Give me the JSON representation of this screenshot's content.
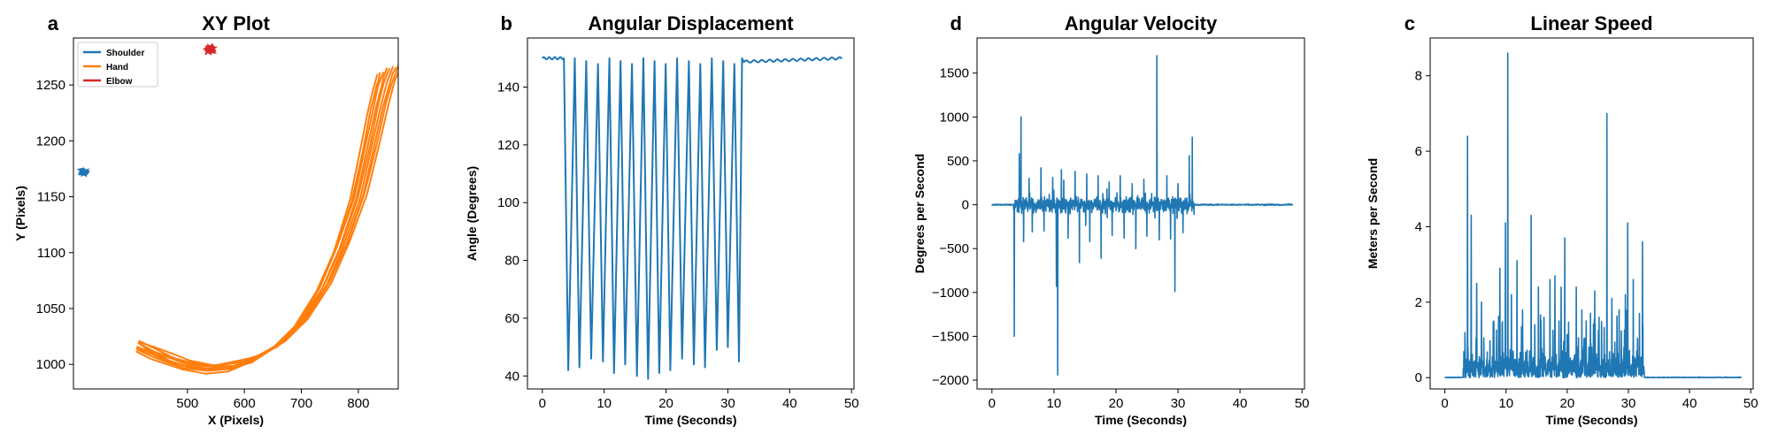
{
  "chart_data": [
    {
      "type": "line",
      "letter": "a",
      "title": "XY Plot",
      "xlabel": "X (Pixels)",
      "ylabel": "Y (Pixels)",
      "xlim": [
        300,
        870
      ],
      "ylim": [
        978,
        1292
      ],
      "xticks": [
        500,
        600,
        700,
        800
      ],
      "yticks": [
        1000,
        1050,
        1100,
        1150,
        1200,
        1250
      ],
      "legend_position": "top-left",
      "series": [
        {
          "name": "Shoulder",
          "color": "#1f77b4",
          "kind": "cluster",
          "center": [
            318,
            1172
          ],
          "spread": [
            12,
            4
          ]
        },
        {
          "name": "Hand",
          "color": "#ff7f0e",
          "kind": "arc",
          "x": [
            412,
            440,
            470,
            500,
            540,
            580,
            620,
            660,
            700,
            740,
            770,
            800,
            820,
            835,
            845,
            850,
            855
          ],
          "y": [
            1017,
            1010,
            1004,
            999,
            996,
            998,
            1005,
            1017,
            1038,
            1070,
            1105,
            1150,
            1195,
            1230,
            1250,
            1258,
            1265
          ]
        },
        {
          "name": "Elbow",
          "color": "#d62728",
          "kind": "cluster",
          "center": [
            540,
            1282
          ],
          "spread": [
            12,
            6
          ]
        }
      ]
    },
    {
      "type": "line",
      "letter": "b",
      "title": "Angular Displacement",
      "xlabel": "Time (Seconds)",
      "ylabel": "Angle (Degrees)",
      "xlim": [
        -2.4,
        50.4
      ],
      "ylim": [
        35.5,
        157
      ],
      "xticks": [
        0,
        10,
        20,
        30,
        40,
        50
      ],
      "yticks": [
        40,
        60,
        80,
        100,
        120,
        140
      ],
      "series": [
        {
          "color": "#1f77b4",
          "baseline": 150,
          "active_start": 3.5,
          "active_end": 32.5,
          "end_time": 48.5,
          "cycle_times": [
            4.2,
            6.0,
            7.9,
            9.8,
            11.6,
            13.4,
            15.3,
            17.1,
            18.9,
            20.7,
            22.6,
            24.5,
            26.3,
            28.2,
            30.0,
            31.8
          ],
          "minima": [
            42,
            43,
            46,
            45,
            41,
            44,
            40,
            39,
            41,
            42,
            46,
            44,
            43,
            49,
            50,
            45
          ]
        }
      ]
    },
    {
      "type": "line",
      "letter": "d",
      "title": "Angular Velocity",
      "xlabel": "Time (Seconds)",
      "ylabel": "Degrees per Second",
      "xlim": [
        -2.4,
        50.4
      ],
      "ylim": [
        -2100,
        1900
      ],
      "xticks": [
        0,
        10,
        20,
        30,
        40,
        50
      ],
      "yticks": [
        -2000,
        -1500,
        -1000,
        -500,
        0,
        500,
        1000,
        1500
      ],
      "series": [
        {
          "color": "#1f77b4",
          "end_time": 48.5,
          "active_start": 3.5,
          "active_end": 32.5,
          "spikes": [
            [
              3.6,
              -1500
            ],
            [
              4.4,
              580
            ],
            [
              4.7,
              1000
            ],
            [
              5.1,
              -420
            ],
            [
              6.0,
              300
            ],
            [
              6.5,
              -310
            ],
            [
              7.9,
              420
            ],
            [
              8.4,
              -300
            ],
            [
              9.8,
              310
            ],
            [
              10.4,
              -930
            ],
            [
              10.6,
              -1940
            ],
            [
              11.2,
              400
            ],
            [
              11.6,
              280
            ],
            [
              12.3,
              -380
            ],
            [
              13.4,
              380
            ],
            [
              14.1,
              -660
            ],
            [
              15.3,
              350
            ],
            [
              15.8,
              -420
            ],
            [
              17.1,
              330
            ],
            [
              17.6,
              -610
            ],
            [
              18.9,
              260
            ],
            [
              19.4,
              -350
            ],
            [
              20.7,
              330
            ],
            [
              21.3,
              -380
            ],
            [
              22.6,
              240
            ],
            [
              23.2,
              -500
            ],
            [
              24.5,
              290
            ],
            [
              25.0,
              -360
            ],
            [
              26.6,
              1700
            ],
            [
              27.0,
              -400
            ],
            [
              28.2,
              330
            ],
            [
              28.8,
              -390
            ],
            [
              29.5,
              -990
            ],
            [
              30.0,
              240
            ],
            [
              30.8,
              -320
            ],
            [
              31.8,
              560
            ],
            [
              32.3,
              770
            ],
            [
              32.6,
              -110
            ]
          ]
        }
      ]
    },
    {
      "type": "line",
      "letter": "c",
      "title": "Linear Speed",
      "xlabel": "Time (Seconds)",
      "ylabel": "Meters per Second",
      "xlim": [
        -2.4,
        50.4
      ],
      "ylim": [
        -0.3,
        9.0
      ],
      "xticks": [
        0,
        10,
        20,
        30,
        40,
        50
      ],
      "yticks": [
        0,
        2,
        4,
        6,
        8
      ],
      "series": [
        {
          "color": "#1f77b4",
          "end_time": 48.5,
          "active_start": 3.0,
          "active_end": 32.6,
          "spikes": [
            [
              3.3,
              1.2
            ],
            [
              3.7,
              6.4
            ],
            [
              4.3,
              4.3
            ],
            [
              5.2,
              2.5
            ],
            [
              6.0,
              2.0
            ],
            [
              8.0,
              1.5
            ],
            [
              9.0,
              2.9
            ],
            [
              9.9,
              4.1
            ],
            [
              10.3,
              8.6
            ],
            [
              10.9,
              2.2
            ],
            [
              11.8,
              3.1
            ],
            [
              12.7,
              1.8
            ],
            [
              14.1,
              4.3
            ],
            [
              15.3,
              2.4
            ],
            [
              16.2,
              1.6
            ],
            [
              17.2,
              2.6
            ],
            [
              18.0,
              2.7
            ],
            [
              19.0,
              2.4
            ],
            [
              19.6,
              3.7
            ],
            [
              21.5,
              2.4
            ],
            [
              22.4,
              1.8
            ],
            [
              23.8,
              1.7
            ],
            [
              24.5,
              2.3
            ],
            [
              25.2,
              1.6
            ],
            [
              26.5,
              7.0
            ],
            [
              27.3,
              2.1
            ],
            [
              28.5,
              1.8
            ],
            [
              29.5,
              2.2
            ],
            [
              29.9,
              4.1
            ],
            [
              30.8,
              2.6
            ],
            [
              31.8,
              1.7
            ],
            [
              32.3,
              3.6
            ]
          ]
        }
      ]
    }
  ]
}
